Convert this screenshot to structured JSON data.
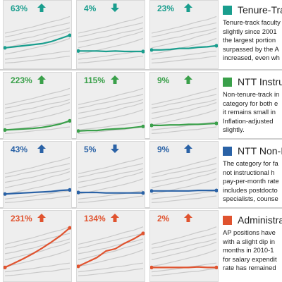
{
  "colors": {
    "teal": "#1a9e8e",
    "green": "#3aa04a",
    "blue": "#2a62a6",
    "orange": "#e0532f",
    "context_line": "#c9c9c9",
    "panel_bg": "#eeeeee"
  },
  "rows": [
    {
      "color_key": "teal",
      "legend_title": "Tenure-Track",
      "description": [
        "Tenure-track faculty",
        "slightly since 2001",
        "the largest portion",
        "surpassed by the A",
        "increased, even wh"
      ]
    },
    {
      "color_key": "green",
      "legend_title": "NTT Instruc",
      "description": [
        "Non-tenure-track in",
        "category for both e",
        "it remains small in",
        "Inflation-adjusted",
        "slightly."
      ]
    },
    {
      "color_key": "blue",
      "legend_title": "NTT Non-In",
      "description": [
        "The category for fa",
        "not instructional h",
        "pay-per-month rate",
        "includes postdocto",
        "specialists, counse"
      ]
    },
    {
      "color_key": "orange",
      "legend_title": "Administrat",
      "description": [
        "AP positions have",
        "with a slight dip in",
        "months in 2010-1",
        "for salary expendit",
        "rate has remained"
      ]
    }
  ],
  "chart_data": {
    "type": "line",
    "note": "small multiples; each panel highlights one series against faint context lines",
    "panels": [
      {
        "row": 0,
        "col": 0,
        "label": "63%",
        "direction": "up",
        "color_key": "teal",
        "values": [
          0.34,
          0.36,
          0.38,
          0.4,
          0.42,
          0.46,
          0.52,
          0.58
        ]
      },
      {
        "row": 0,
        "col": 1,
        "label": "4%",
        "direction": "down",
        "color_key": "teal",
        "values": [
          0.28,
          0.28,
          0.28,
          0.27,
          0.28,
          0.27,
          0.27,
          0.27
        ]
      },
      {
        "row": 0,
        "col": 2,
        "label": "23%",
        "direction": "up",
        "color_key": "teal",
        "values": [
          0.3,
          0.3,
          0.31,
          0.33,
          0.33,
          0.35,
          0.36,
          0.38
        ]
      },
      {
        "row": 1,
        "col": 0,
        "label": "223%",
        "direction": "up",
        "color_key": "green",
        "values": [
          0.12,
          0.13,
          0.14,
          0.15,
          0.17,
          0.2,
          0.24,
          0.3
        ]
      },
      {
        "row": 1,
        "col": 1,
        "label": "115%",
        "direction": "up",
        "color_key": "green",
        "values": [
          0.1,
          0.11,
          0.11,
          0.13,
          0.14,
          0.15,
          0.17,
          0.19
        ]
      },
      {
        "row": 1,
        "col": 2,
        "label": "9%",
        "direction": "up",
        "color_key": "green",
        "values": [
          0.21,
          0.21,
          0.22,
          0.22,
          0.23,
          0.23,
          0.24,
          0.25
        ]
      },
      {
        "row": 2,
        "col": 0,
        "label": "43%",
        "direction": "up",
        "color_key": "blue",
        "values": [
          0.22,
          0.23,
          0.24,
          0.25,
          0.26,
          0.27,
          0.29,
          0.3
        ]
      },
      {
        "row": 2,
        "col": 1,
        "label": "5%",
        "direction": "down",
        "color_key": "blue",
        "values": [
          0.25,
          0.25,
          0.25,
          0.24,
          0.24,
          0.24,
          0.24,
          0.24
        ]
      },
      {
        "row": 2,
        "col": 2,
        "label": "9%",
        "direction": "up",
        "color_key": "blue",
        "values": [
          0.28,
          0.28,
          0.28,
          0.28,
          0.28,
          0.29,
          0.29,
          0.29
        ]
      },
      {
        "row": 3,
        "col": 0,
        "label": "231%",
        "direction": "up",
        "color_key": "orange",
        "values": [
          0.2,
          0.28,
          0.36,
          0.45,
          0.55,
          0.66,
          0.78,
          0.92
        ]
      },
      {
        "row": 3,
        "col": 1,
        "label": "134%",
        "direction": "up",
        "color_key": "orange",
        "values": [
          0.22,
          0.3,
          0.38,
          0.5,
          0.54,
          0.64,
          0.72,
          0.82
        ]
      },
      {
        "row": 3,
        "col": 2,
        "label": "2%",
        "direction": "up",
        "color_key": "orange",
        "values": [
          0.2,
          0.2,
          0.2,
          0.2,
          0.2,
          0.21,
          0.2,
          0.2
        ]
      }
    ],
    "context_series": [
      [
        0.05,
        0.06,
        0.08,
        0.1,
        0.12,
        0.13,
        0.16,
        0.18
      ],
      [
        0.12,
        0.14,
        0.16,
        0.18,
        0.21,
        0.23,
        0.26,
        0.28
      ],
      [
        0.22,
        0.25,
        0.29,
        0.33,
        0.37,
        0.41,
        0.46,
        0.52
      ],
      [
        0.34,
        0.38,
        0.42,
        0.46,
        0.5,
        0.56,
        0.6,
        0.66
      ],
      [
        0.45,
        0.48,
        0.52,
        0.55,
        0.6,
        0.64,
        0.67,
        0.72
      ],
      [
        0.55,
        0.58,
        0.63,
        0.66,
        0.7,
        0.74,
        0.78,
        0.82
      ],
      [
        0.62,
        0.66,
        0.7,
        0.74,
        0.79,
        0.84,
        0.88,
        0.94
      ]
    ],
    "ylim": [
      0,
      1
    ]
  }
}
